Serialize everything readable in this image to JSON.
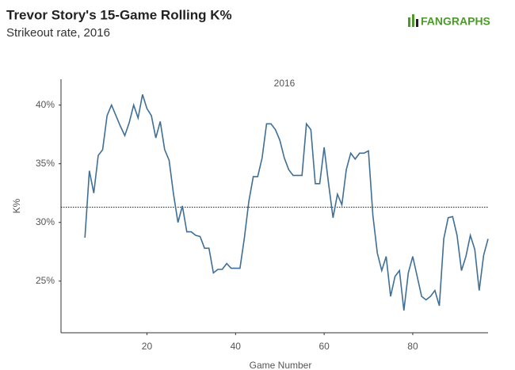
{
  "chart_data": {
    "type": "line",
    "title": "Trevor Story's 15-Game Rolling K%",
    "subtitle": "Strikeout rate, 2016",
    "logo": "FANGRAPHS",
    "annotation": "2016",
    "x_label": "Game Number",
    "y_label": "K%",
    "x": [
      6,
      7,
      8,
      9,
      10,
      11,
      12,
      13,
      14,
      15,
      16,
      17,
      18,
      19,
      20,
      21,
      22,
      23,
      24,
      25,
      26,
      27,
      28,
      29,
      30,
      31,
      32,
      33,
      34,
      35,
      36,
      37,
      38,
      39,
      40,
      41,
      42,
      43,
      44,
      45,
      46,
      47,
      48,
      49,
      50,
      51,
      52,
      53,
      54,
      55,
      56,
      57,
      58,
      59,
      60,
      61,
      62,
      63,
      64,
      65,
      66,
      67,
      68,
      69,
      70,
      71,
      72,
      73,
      74,
      75,
      76,
      77,
      78,
      79,
      80,
      81,
      82,
      83,
      84,
      85,
      86,
      87,
      88,
      89,
      90,
      91,
      92,
      93,
      94,
      95,
      96,
      97
    ],
    "series": [
      {
        "name": "K%",
        "color": "#3f6f96",
        "values": [
          28.7,
          34.4,
          32.5,
          35.7,
          36.2,
          39.1,
          40.0,
          39.1,
          38.2,
          37.4,
          38.5,
          40.0,
          38.9,
          40.9,
          39.7,
          39.1,
          37.2,
          38.6,
          36.2,
          35.3,
          32.4,
          30.0,
          31.4,
          29.2,
          29.2,
          28.9,
          28.8,
          27.8,
          27.8,
          25.7,
          26.0,
          26.0,
          26.5,
          26.1,
          26.1,
          26.1,
          28.7,
          31.8,
          33.9,
          33.9,
          35.5,
          38.4,
          38.4,
          37.9,
          37.0,
          35.5,
          34.5,
          34.0,
          34.0,
          34.0,
          38.4,
          37.9,
          33.3,
          33.3,
          36.4,
          33.3,
          30.4,
          32.4,
          31.5,
          34.5,
          35.9,
          35.4,
          35.9,
          35.9,
          36.1,
          30.6,
          27.4,
          25.9,
          27.1,
          23.7,
          25.4,
          25.9,
          22.5,
          25.7,
          27.1,
          25.4,
          23.7,
          23.4,
          23.7,
          24.2,
          22.9,
          28.6,
          30.4,
          30.5,
          28.9,
          25.9,
          27.1,
          28.9,
          27.7,
          24.2,
          27.2,
          28.6
        ]
      }
    ],
    "reference_line": 31.3,
    "xlim": [
      0.6,
      97
    ],
    "xticks": [
      20,
      40,
      60,
      80
    ],
    "ylim": [
      20.6,
      42.2
    ],
    "yticks": [
      {
        "value": 25,
        "label": "25%"
      },
      {
        "value": 30,
        "label": "30%"
      },
      {
        "value": 35,
        "label": "35%"
      },
      {
        "value": 40,
        "label": "40%"
      }
    ]
  }
}
